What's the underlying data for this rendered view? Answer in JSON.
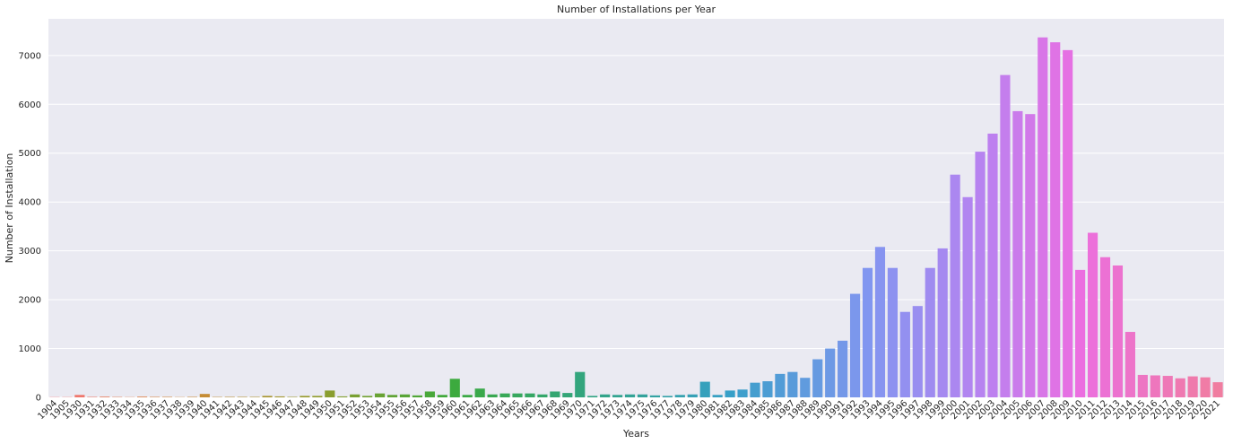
{
  "chart_data": {
    "type": "bar",
    "title": "Number of Installations per Year",
    "xlabel": "Years",
    "ylabel": "Number of Installation",
    "ylim": [
      0,
      7750
    ],
    "yticks": [
      0,
      1000,
      2000,
      3000,
      4000,
      5000,
      6000,
      7000
    ],
    "grid": true,
    "categories": [
      "1904",
      "1905",
      "1930",
      "1931",
      "1932",
      "1933",
      "1934",
      "1935",
      "1936",
      "1937",
      "1938",
      "1939",
      "1940",
      "1941",
      "1942",
      "1943",
      "1944",
      "1945",
      "1946",
      "1947",
      "1948",
      "1949",
      "1950",
      "1951",
      "1952",
      "1953",
      "1954",
      "1955",
      "1956",
      "1957",
      "1958",
      "1959",
      "1960",
      "1961",
      "1962",
      "1963",
      "1964",
      "1965",
      "1966",
      "1967",
      "1968",
      "1969",
      "1970",
      "1971",
      "1972",
      "1973",
      "1974",
      "1975",
      "1976",
      "1977",
      "1978",
      "1979",
      "1980",
      "1981",
      "1982",
      "1983",
      "1984",
      "1985",
      "1986",
      "1987",
      "1988",
      "1989",
      "1990",
      "1991",
      "1992",
      "1993",
      "1994",
      "1995",
      "1996",
      "1997",
      "1998",
      "1999",
      "2000",
      "2001",
      "2002",
      "2003",
      "2004",
      "2005",
      "2006",
      "2007",
      "2008",
      "2009",
      "2010",
      "2011",
      "2012",
      "2013",
      "2014",
      "2015",
      "2016",
      "2017",
      "2018",
      "2019",
      "2020",
      "2021"
    ],
    "values": [
      5,
      5,
      50,
      10,
      15,
      8,
      5,
      15,
      10,
      10,
      5,
      10,
      70,
      8,
      10,
      10,
      10,
      30,
      20,
      10,
      30,
      30,
      140,
      20,
      60,
      30,
      80,
      50,
      60,
      40,
      120,
      50,
      380,
      50,
      180,
      60,
      80,
      80,
      80,
      60,
      120,
      90,
      520,
      30,
      60,
      50,
      60,
      60,
      40,
      30,
      50,
      60,
      320,
      50,
      140,
      160,
      300,
      330,
      480,
      520,
      400,
      780,
      1000,
      1160,
      2120,
      2650,
      3080,
      2650,
      1750,
      1870,
      2650,
      3050,
      4560,
      4100,
      5030,
      5400,
      6600,
      5860,
      5800,
      7370,
      7270,
      7110,
      2610,
      3370,
      2870,
      2700,
      1340,
      460,
      450,
      440,
      390,
      430,
      410,
      310
    ]
  }
}
